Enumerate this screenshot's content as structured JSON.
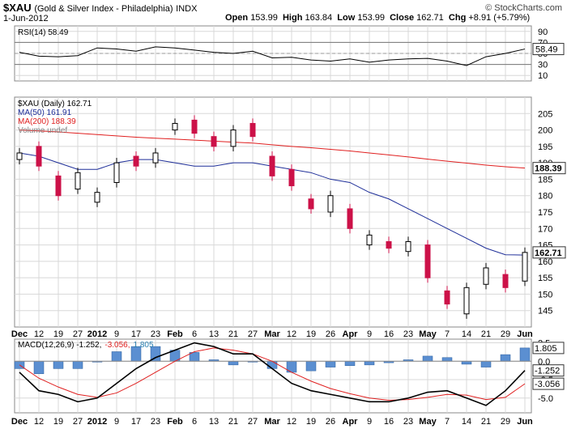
{
  "header": {
    "symbol": "$XAU",
    "description": "(Gold & Silver Index - Philadelphia)",
    "exchange": "INDX",
    "date": "1-Jun-2012",
    "brand": "© StockCharts.com",
    "open_label": "Open",
    "open": "153.99",
    "high_label": "High",
    "high": "163.84",
    "low_label": "Low",
    "low": "153.99",
    "close_label": "Close",
    "close": "162.71",
    "chg_label": "Chg",
    "chg": "+8.91 (+5.79%)"
  },
  "chart_data": [
    {
      "type": "line",
      "title": "RSI(14) 58.49",
      "ylim": [
        0,
        100
      ],
      "yticks": [
        10,
        30,
        50,
        70,
        90
      ],
      "reference_lines": [
        30,
        70
      ],
      "last_value_label": "58.49",
      "x": [
        "Dec",
        "12",
        "19",
        "27",
        "2012",
        "9",
        "17",
        "23",
        "Feb",
        "6",
        "13",
        "21",
        "27",
        "Mar",
        "12",
        "19",
        "26",
        "Apr",
        "9",
        "16",
        "23",
        "May",
        "7",
        "14",
        "21",
        "29",
        "Jun"
      ],
      "series": [
        {
          "name": "RSI(14)",
          "color": "#000000",
          "values": [
            52,
            45,
            44,
            46,
            60,
            58,
            54,
            62,
            60,
            56,
            52,
            50,
            54,
            42,
            43,
            38,
            36,
            40,
            34,
            38,
            40,
            41,
            36,
            28,
            44,
            50,
            58
          ]
        }
      ]
    },
    {
      "type": "candlestick",
      "title": "$XAU (Daily) 162.71",
      "legend": [
        {
          "label": "$XAU (Daily) 162.71",
          "color": "#000000"
        },
        {
          "label": "MA(50) 161.91",
          "color": "#1f2f99"
        },
        {
          "label": "MA(200) 188.39",
          "color": "#e02020"
        },
        {
          "label": "Volume undef",
          "color": "#888888"
        }
      ],
      "ylim": [
        140,
        210
      ],
      "yticks": [
        145,
        150,
        155,
        160,
        165,
        170,
        175,
        180,
        185,
        190,
        195,
        200,
        205
      ],
      "last_value_labels": [
        "162.71",
        "188.39"
      ],
      "x": [
        "Dec",
        "12",
        "19",
        "27",
        "2012",
        "9",
        "17",
        "23",
        "Feb",
        "6",
        "13",
        "21",
        "27",
        "Mar",
        "12",
        "19",
        "26",
        "Apr",
        "9",
        "16",
        "23",
        "May",
        "7",
        "14",
        "21",
        "29",
        "Jun"
      ],
      "candles": [
        {
          "o": 191,
          "c": 193
        },
        {
          "o": 195,
          "c": 189
        },
        {
          "o": 186,
          "c": 180
        },
        {
          "o": 182,
          "c": 187
        },
        {
          "o": 178,
          "c": 181
        },
        {
          "o": 184,
          "c": 190
        },
        {
          "o": 192,
          "c": 189
        },
        {
          "o": 190,
          "c": 193
        },
        {
          "o": 200,
          "c": 202
        },
        {
          "o": 203,
          "c": 199
        },
        {
          "o": 198,
          "c": 195
        },
        {
          "o": 195,
          "c": 200
        },
        {
          "o": 202,
          "c": 198
        },
        {
          "o": 192,
          "c": 186
        },
        {
          "o": 188,
          "c": 183
        },
        {
          "o": 179,
          "c": 176
        },
        {
          "o": 175,
          "c": 180
        },
        {
          "o": 176,
          "c": 170
        },
        {
          "o": 165,
          "c": 168
        },
        {
          "o": 166,
          "c": 164
        },
        {
          "o": 163,
          "c": 166
        },
        {
          "o": 165,
          "c": 155
        },
        {
          "o": 151,
          "c": 147
        },
        {
          "o": 144,
          "c": 152
        },
        {
          "o": 153,
          "c": 158
        },
        {
          "o": 156,
          "c": 152
        },
        {
          "o": 153.99,
          "c": 162.71
        }
      ],
      "series": [
        {
          "name": "MA(50)",
          "color": "#1f2f99",
          "values": [
            193,
            192,
            190,
            188,
            188,
            190,
            191,
            191,
            190,
            189,
            189,
            190,
            190,
            189,
            188,
            187,
            185,
            184,
            181,
            179,
            176,
            173,
            170,
            167,
            164,
            162,
            161.91
          ]
        },
        {
          "name": "MA(200)",
          "color": "#e02020",
          "values": [
            200,
            199.7,
            199.4,
            199,
            198.6,
            198.2,
            197.8,
            197.5,
            197.2,
            196.9,
            196.6,
            196.3,
            196,
            195.5,
            195,
            194.6,
            194.1,
            193.6,
            193,
            192.4,
            191.8,
            191.1,
            190.5,
            189.9,
            189.3,
            188.8,
            188.39
          ]
        }
      ]
    },
    {
      "type": "line",
      "title": "MACD(12,26,9) -1.252, -3.056, 1.805",
      "legend": [
        {
          "label": "MACD(12,26,9) -1.252,",
          "color": "#000000"
        },
        {
          "label": "-3.056,",
          "color": "#e02020"
        },
        {
          "label": "1.805",
          "color": "#2a7fb0"
        }
      ],
      "ylim": [
        -7,
        3
      ],
      "yticks": [
        2.5,
        0.0,
        -2.5,
        -5.0
      ],
      "last_value_labels": [
        "1.805",
        "-1.252",
        "-3.056"
      ],
      "x": [
        "Dec",
        "12",
        "19",
        "27",
        "2012",
        "9",
        "17",
        "23",
        "Feb",
        "6",
        "13",
        "21",
        "27",
        "Mar",
        "12",
        "19",
        "26",
        "Apr",
        "9",
        "16",
        "23",
        "May",
        "7",
        "14",
        "21",
        "29",
        "Jun"
      ],
      "series": [
        {
          "name": "MACD",
          "color": "#000000",
          "values": [
            -1.5,
            -4,
            -4.5,
            -5.5,
            -5,
            -3,
            -1,
            0.5,
            1.5,
            2.5,
            2,
            1,
            1,
            -1,
            -3,
            -4,
            -4.5,
            -5,
            -5.5,
            -5.5,
            -5,
            -4.2,
            -4,
            -5,
            -6,
            -4,
            -1.252
          ]
        },
        {
          "name": "Signal",
          "color": "#e02020",
          "values": [
            -0.5,
            -2.3,
            -3.5,
            -4.5,
            -4.9,
            -4.3,
            -3,
            -1.5,
            0,
            1.3,
            1.8,
            1.5,
            1,
            0,
            -1.5,
            -2.7,
            -3.7,
            -4.4,
            -5,
            -5.3,
            -5.2,
            -4.9,
            -4.5,
            -4.6,
            -5.2,
            -4.9,
            -3.056
          ]
        },
        {
          "name": "Histogram",
          "color": "#2a7fb0",
          "values": [
            -1,
            -1.7,
            -1,
            -1,
            -0.1,
            1.3,
            2,
            2,
            1.5,
            1.2,
            0.2,
            -0.5,
            0,
            -1,
            -1.5,
            -1.3,
            -0.8,
            -0.6,
            -0.5,
            -0.2,
            0.2,
            0.7,
            0.5,
            -0.4,
            -0.8,
            0.9,
            1.805
          ]
        }
      ]
    }
  ]
}
